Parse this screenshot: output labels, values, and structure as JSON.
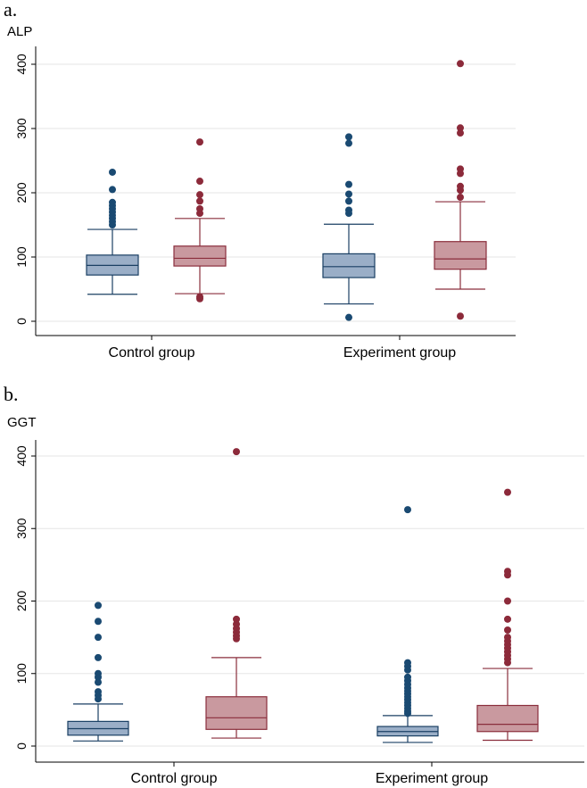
{
  "colors": {
    "control_box_fill": "#9aaec7",
    "control_line": "#1a3f63",
    "control_outlier": "#1a4a72",
    "experiment_box_fill": "#c9999f",
    "experiment_line": "#8a2e3c",
    "experiment_outlier": "#8c2a3a",
    "grid": "#e6e6e6",
    "axis": "#000000"
  },
  "chart_data": [
    {
      "type": "box",
      "panel_label": "a.",
      "ylabel": "ALP",
      "ylim": [
        0,
        420
      ],
      "yticks": [
        0,
        100,
        200,
        300,
        400
      ],
      "grid": true,
      "categories": [
        "Control group",
        "Experiment group"
      ],
      "boxes": [
        {
          "category": "Control group",
          "color": "blue",
          "whisker_low": 42,
          "q1": 72,
          "median": 87,
          "q3": 103,
          "whisker_high": 143,
          "outliers": [
            150,
            155,
            160,
            165,
            170,
            175,
            180,
            185,
            205,
            232
          ]
        },
        {
          "category": "Control group",
          "color": "red",
          "whisker_low": 43,
          "q1": 86,
          "median": 98,
          "q3": 117,
          "whisker_high": 160,
          "outliers": [
            35,
            38,
            168,
            175,
            187,
            197,
            218,
            279
          ]
        },
        {
          "category": "Experiment group",
          "color": "blue",
          "whisker_low": 27,
          "q1": 68,
          "median": 85,
          "q3": 105,
          "whisker_high": 151,
          "outliers": [
            6,
            168,
            173,
            187,
            198,
            213,
            277,
            287
          ]
        },
        {
          "category": "Experiment group",
          "color": "red",
          "whisker_low": 50,
          "q1": 81,
          "median": 97,
          "q3": 124,
          "whisker_high": 186,
          "outliers": [
            8,
            193,
            204,
            210,
            230,
            237,
            293,
            301,
            401
          ]
        }
      ]
    },
    {
      "type": "box",
      "panel_label": "b.",
      "ylabel": "GGT",
      "ylim": [
        0,
        420
      ],
      "yticks": [
        0,
        100,
        200,
        300,
        400
      ],
      "grid": true,
      "categories": [
        "Control group",
        "Experiment group"
      ],
      "boxes": [
        {
          "category": "Control group",
          "color": "blue",
          "whisker_low": 7,
          "q1": 15,
          "median": 24,
          "q3": 34,
          "whisker_high": 58,
          "outliers": [
            65,
            70,
            75,
            88,
            95,
            100,
            122,
            150,
            172,
            194
          ]
        },
        {
          "category": "Control group",
          "color": "red",
          "whisker_low": 11,
          "q1": 23,
          "median": 39,
          "q3": 68,
          "whisker_high": 122,
          "outliers": [
            148,
            152,
            157,
            162,
            168,
            175,
            406
          ]
        },
        {
          "category": "Experiment group",
          "color": "blue",
          "whisker_low": 5,
          "q1": 14,
          "median": 20,
          "q3": 27,
          "whisker_high": 42,
          "outliers": [
            45,
            48,
            52,
            56,
            60,
            64,
            68,
            72,
            76,
            80,
            85,
            90,
            95,
            105,
            110,
            115,
            326
          ]
        },
        {
          "category": "Experiment group",
          "color": "red",
          "whisker_low": 8,
          "q1": 20,
          "median": 30,
          "q3": 56,
          "whisker_high": 107,
          "outliers": [
            115,
            120,
            125,
            130,
            135,
            140,
            145,
            150,
            160,
            175,
            200,
            236,
            241,
            350
          ]
        }
      ]
    }
  ]
}
